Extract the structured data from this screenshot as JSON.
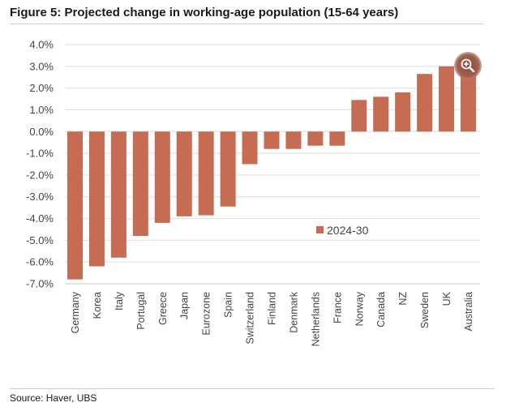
{
  "figure": {
    "title": "Figure 5: Projected change in working-age population (15-64 years)",
    "source": "Source: Haver, UBS"
  },
  "colors": {
    "bar": "#c56c52",
    "grid": "#e3e3e3",
    "axis": "#d6d6d6"
  },
  "zoom_button": {
    "icon": "zoom-in-icon"
  },
  "chart_data": {
    "type": "bar",
    "title": "Projected change in working-age population (15-64 years)",
    "xlabel": "",
    "ylabel": "",
    "ylim": [
      -7.0,
      4.0
    ],
    "yticks": [
      4.0,
      3.0,
      2.0,
      1.0,
      0.0,
      -1.0,
      -2.0,
      -3.0,
      -4.0,
      -5.0,
      -6.0,
      -7.0
    ],
    "ytick_labels": [
      "4.0%",
      "3.0%",
      "2.0%",
      "1.0%",
      "0.0%",
      "-1.0%",
      "-2.0%",
      "-3.0%",
      "-4.0%",
      "-5.0%",
      "-6.0%",
      "-7.0%"
    ],
    "grid": true,
    "legend_position": "center-right",
    "categories": [
      "Germany",
      "Korea",
      "Italy",
      "Portugal",
      "Greece",
      "Japan",
      "Eurozone",
      "Spain",
      "Switzerland",
      "Finland",
      "Denmark",
      "Netherlands",
      "France",
      "Norway",
      "Canada",
      "NZ",
      "Sweden",
      "UK",
      "Australia"
    ],
    "series": [
      {
        "name": "2024-30",
        "values": [
          -6.8,
          -6.2,
          -5.8,
          -4.8,
          -4.2,
          -3.9,
          -3.85,
          -3.45,
          -1.5,
          -0.8,
          -0.8,
          -0.65,
          -0.65,
          1.45,
          1.6,
          1.8,
          2.65,
          3.0,
          2.8
        ]
      }
    ]
  }
}
